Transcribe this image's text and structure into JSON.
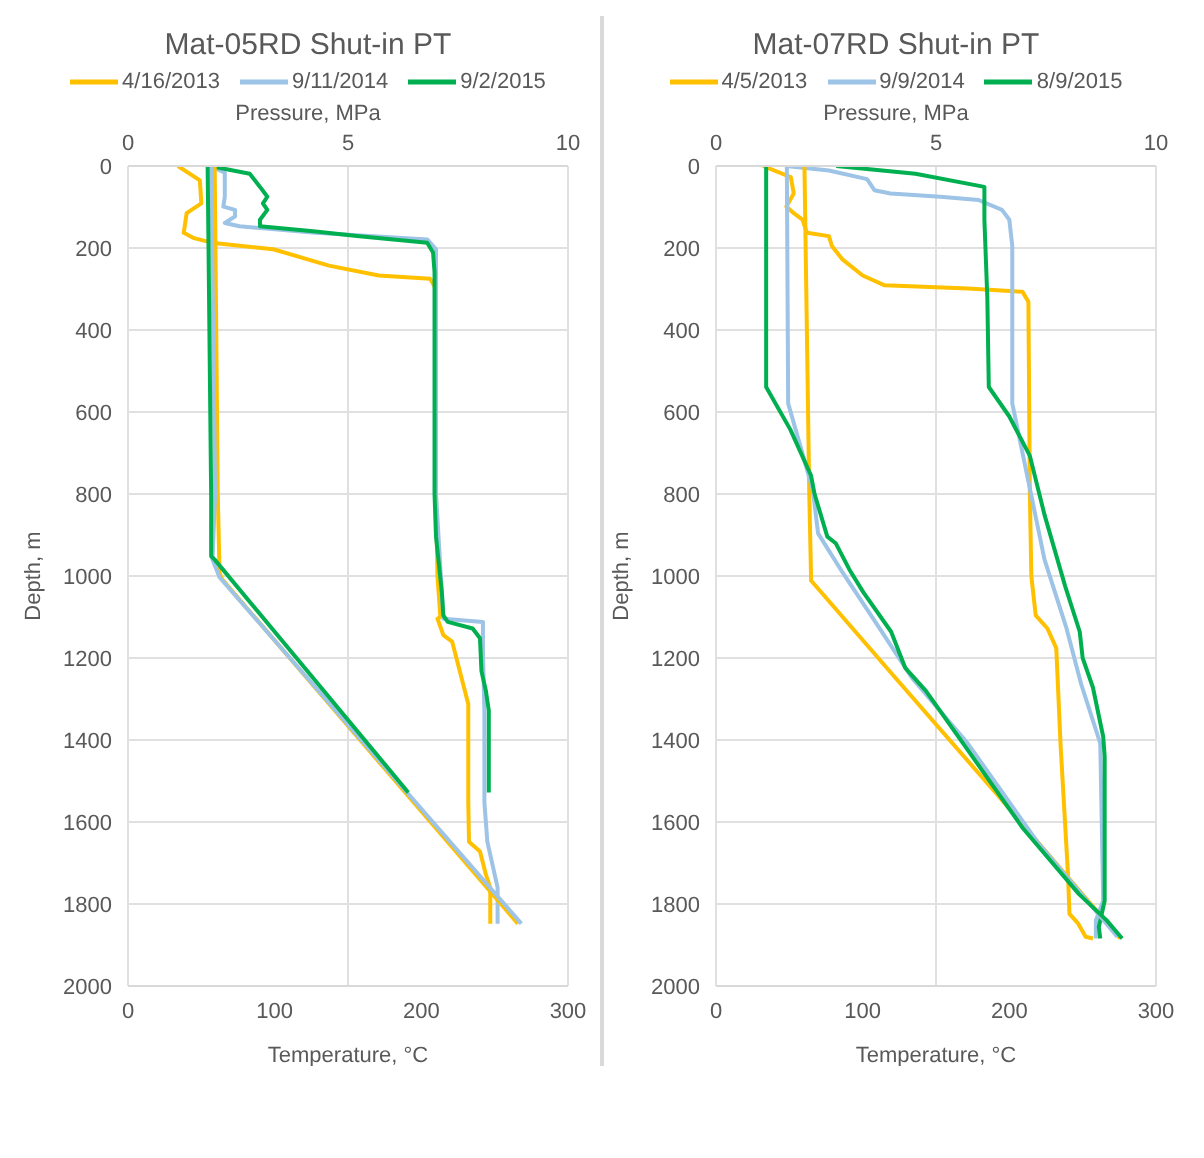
{
  "chart_data": [
    {
      "type": "line",
      "title": "Mat-05RD Shut-in PT",
      "xlabel": "Temperature, °C",
      "x2label": "Pressure, MPa",
      "ylabel": "Depth, m",
      "xlim": [
        0,
        300
      ],
      "xticks": [
        0,
        100,
        200,
        300
      ],
      "x2lim": [
        0,
        10
      ],
      "x2ticks": [
        0,
        5,
        10
      ],
      "ylim": [
        2000,
        0
      ],
      "yticks": [
        0,
        200,
        400,
        600,
        800,
        1000,
        1200,
        1400,
        1600,
        1800,
        2000
      ],
      "grid": true,
      "legend": "top",
      "marker": "none",
      "line_style": "solid",
      "series": [
        {
          "name": "4/16/2013",
          "color": "#ffc000",
          "x": [
            34,
            49,
            50,
            40,
            38,
            45,
            57,
            99,
            137,
            171,
            206,
            210,
            210,
            211,
            213,
            211,
            215,
            221,
            232,
            232,
            232.5,
            240,
            244,
            247,
            247
          ],
          "values": [
            0,
            35,
            91,
            115,
            163,
            176,
            187,
            203,
            243,
            267,
            275,
            300,
            800,
            1000,
            1100,
            1104,
            1144,
            1160,
            1312,
            1552,
            1648,
            1672,
            1728,
            1760,
            1848
          ]
        },
        {
          "name": "9/11/2014",
          "color": "#9dc3e6",
          "x": [
            56,
            66,
            66,
            65,
            73,
            73,
            66,
            76,
            128,
            204,
            210,
            210,
            215,
            242,
            242,
            243,
            243,
            245,
            249,
            252,
            252
          ],
          "values": [
            0,
            16,
            75,
            99,
            107,
            123,
            139,
            147,
            163,
            179,
            203,
            800,
            1104,
            1112,
            1184,
            1328,
            1552,
            1648,
            1712,
            1760,
            1848
          ]
        },
        {
          "name": "9/2/2015",
          "color": "#00b050",
          "x": [
            56,
            83,
            90,
            95,
            92,
            95,
            90,
            90,
            128,
            156,
            204,
            208,
            209,
            209,
            210,
            214,
            215,
            218,
            235,
            240,
            241,
            244,
            246,
            246
          ],
          "values": [
            0,
            19,
            51,
            75,
            91,
            107,
            131,
            147,
            160,
            171,
            187,
            211,
            259,
            800,
            904,
            1040,
            1096,
            1112,
            1128,
            1152,
            1232,
            1280,
            1328,
            1528
          ]
        },
        {
          "color": "#ffc000",
          "axis": "x2",
          "x": [
            1.97,
            2.04,
            2.08,
            2.14,
            8.86
          ],
          "values": [
            0,
            800,
            992,
            1008,
            1848
          ]
        },
        {
          "color": "#9dc3e6",
          "axis": "x2",
          "x": [
            1.89,
            1.98,
            1.92,
            2.08,
            8.94
          ],
          "values": [
            0,
            800,
            960,
            1003,
            1848
          ]
        },
        {
          "color": "#00b050",
          "axis": "x2",
          "x": [
            1.81,
            1.89,
            1.89,
            1.97,
            6.37
          ],
          "values": [
            0,
            800,
            952,
            960,
            1528
          ]
        }
      ]
    },
    {
      "type": "line",
      "title": "Mat-07RD Shut-in PT",
      "xlabel": "Temperature, °C",
      "x2label": "Pressure, MPa",
      "ylabel": "Depth, m",
      "xlim": [
        0,
        300
      ],
      "xticks": [
        0,
        100,
        200,
        300
      ],
      "x2lim": [
        0,
        10
      ],
      "x2ticks": [
        0,
        5,
        10
      ],
      "ylim": [
        2000,
        0
      ],
      "yticks": [
        0,
        200,
        400,
        600,
        800,
        1000,
        1200,
        1400,
        1600,
        1800,
        2000
      ],
      "grid": true,
      "legend": "top",
      "marker": "none",
      "line_style": "solid",
      "series": [
        {
          "name": "4/5/2013",
          "color": "#ffc000",
          "x": [
            32,
            51,
            53,
            48,
            53,
            59,
            62,
            77,
            79,
            86,
            100,
            115,
            172,
            209,
            213,
            214,
            215,
            218,
            226,
            232,
            235,
            240,
            241,
            247,
            252,
            257
          ],
          "values": [
            0,
            27,
            67,
            99,
            115,
            131,
            163,
            171,
            195,
            227,
            267,
            291,
            299,
            307,
            331,
            800,
            1000,
            1096,
            1128,
            1176,
            1416,
            1728,
            1824,
            1848,
            1880,
            1884
          ]
        },
        {
          "name": "9/9/2014",
          "color": "#9dc3e6",
          "x": [
            48,
            77,
            103,
            108,
            119,
            153,
            179,
            195,
            200,
            202,
            202,
            224,
            239,
            249,
            262,
            263,
            264,
            259,
            259
          ],
          "values": [
            0,
            11,
            32,
            59,
            67,
            75,
            83,
            107,
            131,
            195,
            579,
            960,
            1128,
            1264,
            1408,
            1600,
            1792,
            1840,
            1884
          ]
        },
        {
          "name": "8/9/2015",
          "color": "#00b050",
          "x": [
            82,
            136,
            183,
            183,
            185,
            186,
            200,
            214,
            224,
            238,
            248,
            250,
            257,
            264,
            265,
            265,
            261,
            262
          ],
          "values": [
            0,
            19,
            51,
            131,
            323,
            539,
            611,
            707,
            851,
            1024,
            1136,
            1200,
            1272,
            1392,
            1440,
            1792,
            1856,
            1884
          ]
        },
        {
          "color": "#ffc000",
          "axis": "x2",
          "x": [
            2.01,
            2.12,
            2.16,
            2.16,
            4.14,
            6.35,
            9.19
          ],
          "values": [
            0,
            800,
            1000,
            1011,
            1256,
            1528,
            1884
          ]
        },
        {
          "color": "#9dc3e6",
          "axis": "x2",
          "x": [
            1.61,
            1.64,
            2.2,
            2.32,
            2.88,
            3.67,
            4.45,
            5.72,
            7.3,
            8.56,
            9.12
          ],
          "values": [
            0,
            579,
            790,
            896,
            992,
            1120,
            1248,
            1408,
            1648,
            1808,
            1880
          ]
        },
        {
          "color": "#00b050",
          "axis": "x2",
          "x": [
            1.14,
            1.14,
            1.69,
            2.16,
            2.24,
            2.53,
            2.72,
            3.03,
            3.35,
            3.98,
            4.3,
            4.77,
            5.72,
            6.98,
            8.25,
            8.88,
            9.23
          ],
          "values": [
            0,
            539,
            643,
            755,
            800,
            904,
            920,
            984,
            1040,
            1136,
            1224,
            1280,
            1424,
            1616,
            1776,
            1840,
            1884
          ]
        }
      ]
    }
  ]
}
